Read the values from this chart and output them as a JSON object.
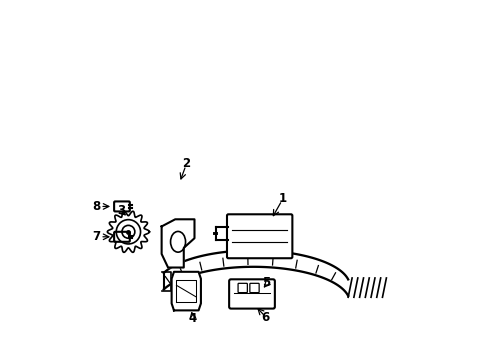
{
  "background_color": "#ffffff",
  "line_color": "#000000",
  "line_width": 1.5
}
